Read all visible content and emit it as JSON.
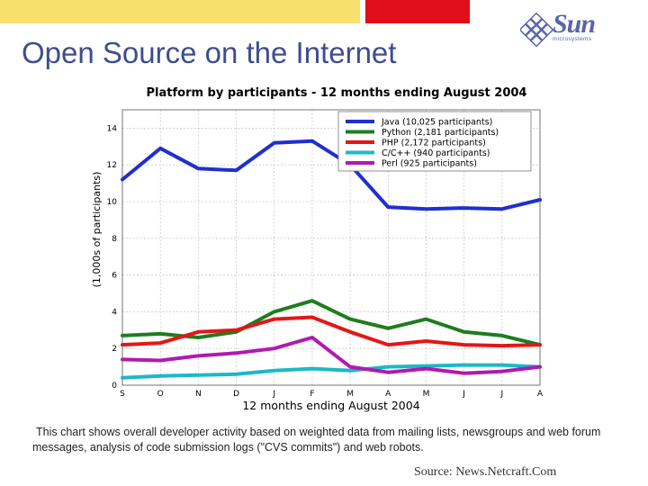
{
  "slide": {
    "title": "Open Source on the Internet",
    "logo": {
      "name": "Sun",
      "subtitle": "microsystems"
    },
    "caption": "This chart shows overall developer activity based on weighted data from mailing lists, newsgroups and web forum messages, analysis of code submission logs (\"CVS commits\") and web robots.",
    "source": "Source: News.Netcraft.Com",
    "colors": {
      "title": "#3e4d8f",
      "top_bar_yellow": "#f8e06e",
      "top_bar_red": "#e0101a"
    }
  },
  "chart_data": {
    "type": "line",
    "title": "Platform by participants - 12 months ending August 2004",
    "xlabel": "12 months ending August 2004",
    "ylabel": "(1,000s of participants)",
    "categories": [
      "S",
      "O",
      "N",
      "D",
      "J",
      "F",
      "M",
      "A",
      "M",
      "J",
      "J",
      "A"
    ],
    "ylim": [
      0,
      15
    ],
    "yticks": [
      0,
      2,
      4,
      6,
      8,
      10,
      12,
      14
    ],
    "grid": true,
    "legend": "top-right",
    "series": [
      {
        "name": "Java (10,025 participants)",
        "color": "#1f2fd0",
        "values": [
          11.2,
          12.9,
          11.8,
          11.7,
          13.2,
          13.3,
          12.0,
          9.7,
          9.6,
          9.65,
          9.6,
          10.1
        ]
      },
      {
        "name": "Python (2,181 participants)",
        "color": "#1e7d1e",
        "values": [
          2.7,
          2.8,
          2.6,
          2.9,
          4.0,
          4.6,
          3.6,
          3.1,
          3.6,
          2.9,
          2.7,
          2.2
        ]
      },
      {
        "name": "PHP (2,172 participants)",
        "color": "#e31717",
        "values": [
          2.2,
          2.3,
          2.9,
          3.0,
          3.6,
          3.7,
          2.9,
          2.2,
          2.4,
          2.2,
          2.15,
          2.2
        ]
      },
      {
        "name": "C/C++ (940 participants)",
        "color": "#1cb8c8",
        "values": [
          0.4,
          0.5,
          0.55,
          0.6,
          0.8,
          0.9,
          0.8,
          1.0,
          1.05,
          1.1,
          1.1,
          1.0
        ]
      },
      {
        "name": "Perl (925 participants)",
        "color": "#b01ab0",
        "values": [
          1.4,
          1.35,
          1.6,
          1.75,
          2.0,
          2.6,
          1.0,
          0.7,
          0.9,
          0.65,
          0.75,
          1.0
        ]
      }
    ]
  }
}
